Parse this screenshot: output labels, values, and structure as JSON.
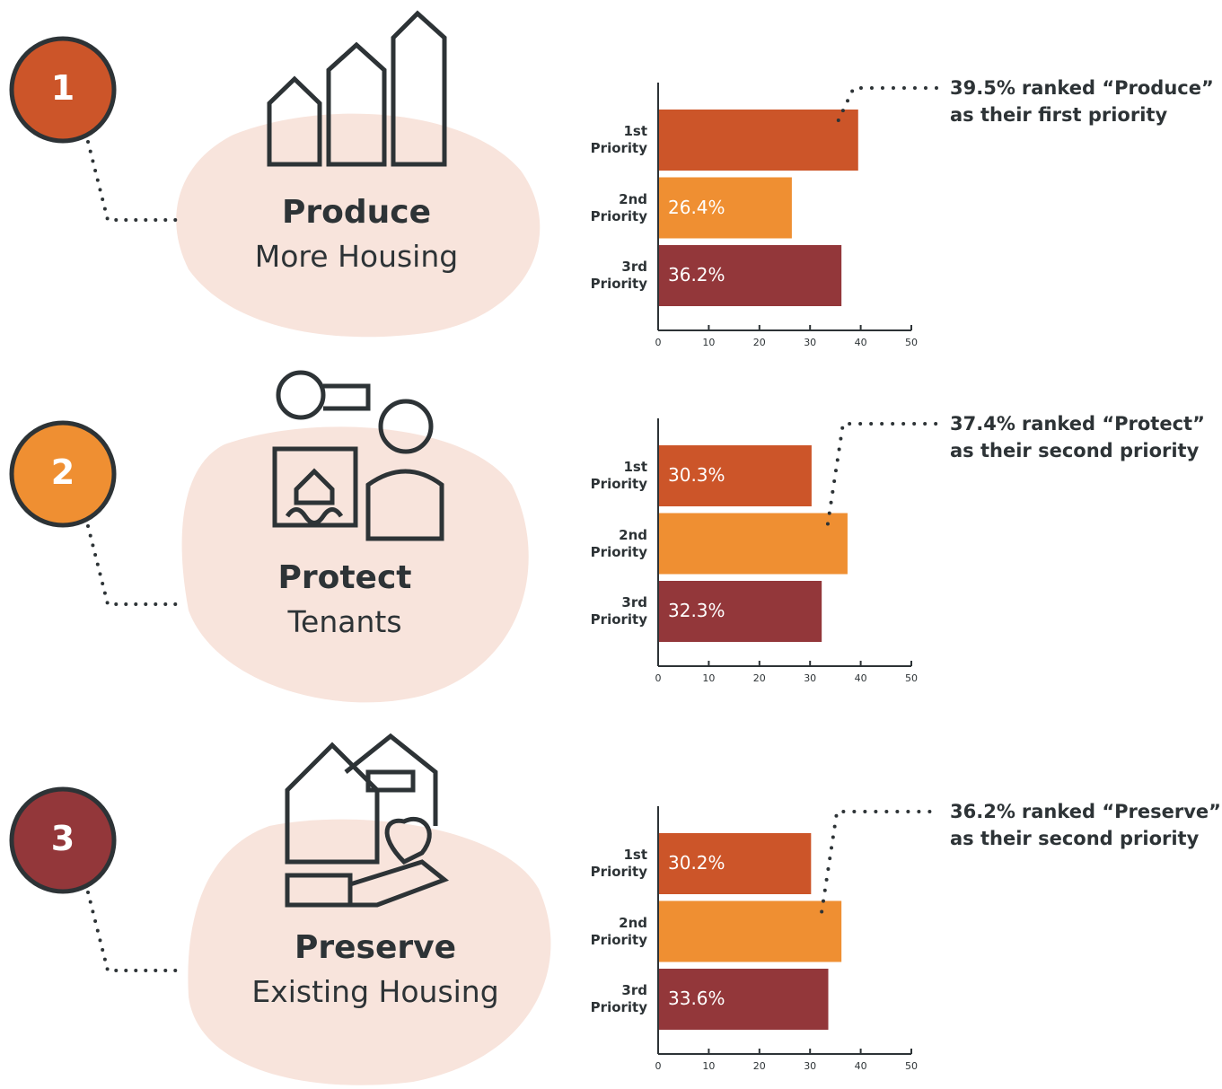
{
  "chart_data": [
    {
      "type": "bar",
      "orientation": "horizontal",
      "number": "1",
      "heading": "Produce",
      "subheading": "More Housing",
      "categories": [
        "1st Priority",
        "2nd Priority",
        "3rd Priority"
      ],
      "values": [
        39.5,
        26.4,
        36.2
      ],
      "value_labels": [
        null,
        "26.4%",
        "36.2%"
      ],
      "colors": [
        "#cc5529",
        "#ef8f32",
        "#93373a"
      ],
      "badge_color": "#cc5529",
      "xlim": [
        0,
        50
      ],
      "xticks": [
        0,
        10,
        20,
        30,
        40,
        50
      ],
      "annotation": {
        "highlight": "39.5%",
        "lines": [
          "ranked “Produce”",
          "as their first priority"
        ]
      }
    },
    {
      "type": "bar",
      "orientation": "horizontal",
      "number": "2",
      "heading": "Protect",
      "subheading": "Tenants",
      "categories": [
        "1st Priority",
        "2nd Priority",
        "3rd Priority"
      ],
      "values": [
        30.3,
        37.4,
        32.3
      ],
      "value_labels": [
        "30.3%",
        null,
        "32.3%"
      ],
      "colors": [
        "#cc5529",
        "#ef8f32",
        "#93373a"
      ],
      "badge_color": "#ef8f32",
      "xlim": [
        0,
        50
      ],
      "xticks": [
        0,
        10,
        20,
        30,
        40,
        50
      ],
      "annotation": {
        "highlight": "37.4%",
        "lines": [
          "ranked “Protect”",
          "as their second priority"
        ]
      }
    },
    {
      "type": "bar",
      "orientation": "horizontal",
      "number": "3",
      "heading": "Preserve",
      "subheading": "Existing Housing",
      "categories": [
        "1st Priority",
        "2nd Priority",
        "3rd Priority"
      ],
      "values": [
        30.2,
        36.2,
        33.6
      ],
      "value_labels": [
        "30.2%",
        null,
        "33.6%"
      ],
      "colors": [
        "#cc5529",
        "#ef8f32",
        "#93373a"
      ],
      "badge_color": "#93373a",
      "xlim": [
        0,
        50
      ],
      "xticks": [
        0,
        10,
        20,
        30,
        40,
        50
      ],
      "annotation": {
        "highlight": "36.2%",
        "lines": [
          "ranked “Preserve”",
          "as their second priority"
        ]
      }
    }
  ]
}
